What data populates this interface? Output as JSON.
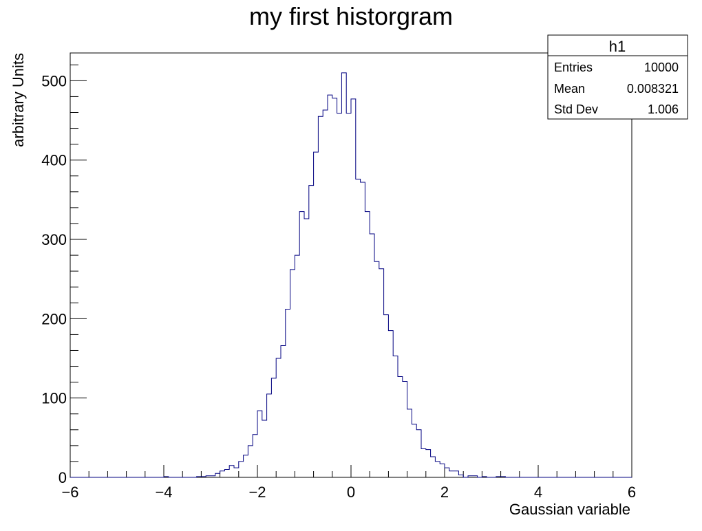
{
  "chart_data": {
    "type": "histogram",
    "title": "my first historgram",
    "xlabel": "Gaussian variable",
    "ylabel": "arbitrary Units",
    "xlim": [
      -6,
      6
    ],
    "ylim": [
      0,
      535
    ],
    "x_ticks": [
      "−6",
      "−4",
      "−2",
      "0",
      "2",
      "4",
      "6"
    ],
    "y_ticks": [
      "0",
      "100",
      "200",
      "300",
      "400",
      "500"
    ],
    "x_tick_values": [
      -6,
      -4,
      -2,
      0,
      2,
      4,
      6
    ],
    "y_tick_values": [
      0,
      100,
      200,
      300,
      400,
      500
    ],
    "bin_width": 0.1,
    "line_color": "#000080",
    "grid": false,
    "series": [
      {
        "bin_edges_start": -6,
        "values": [
          0,
          0,
          0,
          0,
          0,
          0,
          0,
          0,
          0,
          0,
          0,
          0,
          0,
          0,
          0,
          0,
          0,
          0,
          0,
          0,
          1,
          0,
          0,
          0,
          0,
          0,
          0,
          1,
          1,
          2,
          2,
          5,
          8,
          10,
          15,
          12,
          20,
          28,
          40,
          54,
          84,
          72,
          105,
          125,
          150,
          166,
          212,
          262,
          280,
          335,
          326,
          368,
          410,
          455,
          463,
          482,
          478,
          459,
          510,
          459,
          477,
          376,
          372,
          335,
          307,
          272,
          263,
          205,
          185,
          153,
          127,
          121,
          86,
          67,
          60,
          36,
          35,
          26,
          20,
          17,
          12,
          8,
          8,
          3,
          0,
          2,
          2,
          0,
          1,
          0,
          0,
          1,
          1,
          0,
          0,
          0,
          0,
          0,
          0,
          0,
          0,
          0,
          0,
          0,
          0,
          0,
          0,
          0,
          0,
          0,
          0,
          0,
          0,
          0,
          0,
          0,
          0,
          0,
          0,
          0
        ]
      }
    ]
  },
  "stats_box": {
    "name": "h1",
    "rows": [
      {
        "label": "Entries",
        "value": "10000"
      },
      {
        "label": "Mean",
        "value": "0.008321"
      },
      {
        "label": "Std Dev",
        "value": "1.006"
      }
    ]
  }
}
